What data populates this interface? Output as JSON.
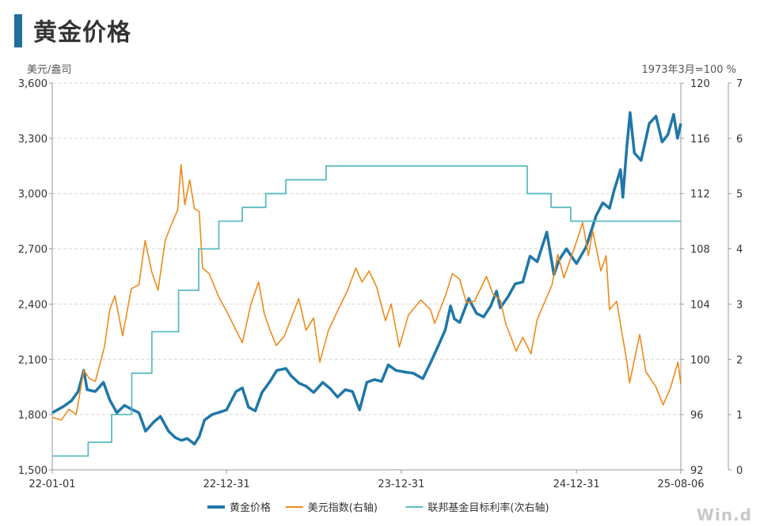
{
  "title": "黄金价格",
  "left_unit": "美元/盎司",
  "right_unit": "1973年3月=100 %",
  "watermark": "Win.d",
  "chart_data": {
    "type": "line",
    "x_ticks": [
      "22-01-01",
      "22-12-31",
      "23-12-31",
      "24-12-31",
      "25-08-06"
    ],
    "axes": {
      "left": {
        "ylim": [
          1500,
          3600
        ],
        "ticks": [
          "1,500",
          "1,800",
          "2,100",
          "2,400",
          "2,700",
          "3,000",
          "3,300",
          "3,600"
        ]
      },
      "right": {
        "ylim": [
          92,
          120
        ],
        "ticks": [
          "92",
          "96",
          "100",
          "104",
          "108",
          "112",
          "116",
          "120"
        ]
      },
      "right2": {
        "ylim": [
          0,
          7
        ],
        "ticks": [
          "0",
          "1",
          "2",
          "3",
          "4",
          "5",
          "6",
          "7"
        ]
      }
    },
    "grid": true,
    "legend_position": "bottom",
    "series": [
      {
        "name": "黄金价格",
        "axis": "left",
        "color": "#1f77a8",
        "points": [
          [
            "2022-01-01",
            1810
          ],
          [
            "2022-01-25",
            1845
          ],
          [
            "2022-02-10",
            1875
          ],
          [
            "2022-02-24",
            1925
          ],
          [
            "2022-03-08",
            2040
          ],
          [
            "2022-03-15",
            1935
          ],
          [
            "2022-04-01",
            1925
          ],
          [
            "2022-04-18",
            1975
          ],
          [
            "2022-05-01",
            1880
          ],
          [
            "2022-05-16",
            1810
          ],
          [
            "2022-06-01",
            1850
          ],
          [
            "2022-06-15",
            1830
          ],
          [
            "2022-07-01",
            1810
          ],
          [
            "2022-07-15",
            1710
          ],
          [
            "2022-08-01",
            1760
          ],
          [
            "2022-08-15",
            1790
          ],
          [
            "2022-09-01",
            1710
          ],
          [
            "2022-09-15",
            1675
          ],
          [
            "2022-09-28",
            1660
          ],
          [
            "2022-10-10",
            1670
          ],
          [
            "2022-10-25",
            1640
          ],
          [
            "2022-11-04",
            1680
          ],
          [
            "2022-11-15",
            1770
          ],
          [
            "2022-12-01",
            1800
          ],
          [
            "2022-12-31",
            1825
          ],
          [
            "2023-01-20",
            1925
          ],
          [
            "2023-02-02",
            1945
          ],
          [
            "2023-02-15",
            1840
          ],
          [
            "2023-03-01",
            1820
          ],
          [
            "2023-03-15",
            1920
          ],
          [
            "2023-04-01",
            1980
          ],
          [
            "2023-04-15",
            2040
          ],
          [
            "2023-05-04",
            2050
          ],
          [
            "2023-05-15",
            2010
          ],
          [
            "2023-06-01",
            1970
          ],
          [
            "2023-06-15",
            1955
          ],
          [
            "2023-07-01",
            1920
          ],
          [
            "2023-07-20",
            1975
          ],
          [
            "2023-08-05",
            1940
          ],
          [
            "2023-08-20",
            1895
          ],
          [
            "2023-09-05",
            1935
          ],
          [
            "2023-09-20",
            1925
          ],
          [
            "2023-10-05",
            1825
          ],
          [
            "2023-10-20",
            1975
          ],
          [
            "2023-11-05",
            1990
          ],
          [
            "2023-11-20",
            1980
          ],
          [
            "2023-12-04",
            2070
          ],
          [
            "2023-12-20",
            2040
          ],
          [
            "2024-01-10",
            2030
          ],
          [
            "2024-01-25",
            2025
          ],
          [
            "2024-02-14",
            1995
          ],
          [
            "2024-03-01",
            2080
          ],
          [
            "2024-03-15",
            2160
          ],
          [
            "2024-04-01",
            2260
          ],
          [
            "2024-04-12",
            2390
          ],
          [
            "2024-04-20",
            2320
          ],
          [
            "2024-05-01",
            2300
          ],
          [
            "2024-05-20",
            2430
          ],
          [
            "2024-06-05",
            2350
          ],
          [
            "2024-06-20",
            2330
          ],
          [
            "2024-07-05",
            2390
          ],
          [
            "2024-07-17",
            2470
          ],
          [
            "2024-07-25",
            2380
          ],
          [
            "2024-08-10",
            2440
          ],
          [
            "2024-08-25",
            2510
          ],
          [
            "2024-09-10",
            2520
          ],
          [
            "2024-09-25",
            2660
          ],
          [
            "2024-10-10",
            2630
          ],
          [
            "2024-10-30",
            2790
          ],
          [
            "2024-11-14",
            2560
          ],
          [
            "2024-11-25",
            2640
          ],
          [
            "2024-12-10",
            2700
          ],
          [
            "2024-12-31",
            2620
          ],
          [
            "2025-01-20",
            2710
          ],
          [
            "2025-02-10",
            2880
          ],
          [
            "2025-02-24",
            2950
          ],
          [
            "2025-03-10",
            2920
          ],
          [
            "2025-03-20",
            3020
          ],
          [
            "2025-04-02",
            3130
          ],
          [
            "2025-04-07",
            2980
          ],
          [
            "2025-04-15",
            3250
          ],
          [
            "2025-04-22",
            3440
          ],
          [
            "2025-05-01",
            3220
          ],
          [
            "2025-05-15",
            3180
          ],
          [
            "2025-06-01",
            3380
          ],
          [
            "2025-06-15",
            3420
          ],
          [
            "2025-06-28",
            3280
          ],
          [
            "2025-07-10",
            3320
          ],
          [
            "2025-07-22",
            3430
          ],
          [
            "2025-07-30",
            3300
          ],
          [
            "2025-08-06",
            3380
          ]
        ]
      },
      {
        "name": "美元指数(右轴)",
        "axis": "right",
        "color": "#ee8a1a",
        "points": [
          [
            "2022-01-01",
            95.8
          ],
          [
            "2022-01-20",
            95.6
          ],
          [
            "2022-02-05",
            96.4
          ],
          [
            "2022-02-20",
            96.0
          ],
          [
            "2022-03-08",
            99.2
          ],
          [
            "2022-03-20",
            98.6
          ],
          [
            "2022-04-01",
            98.4
          ],
          [
            "2022-04-20",
            100.9
          ],
          [
            "2022-05-01",
            103.6
          ],
          [
            "2022-05-12",
            104.6
          ],
          [
            "2022-05-28",
            101.7
          ],
          [
            "2022-06-15",
            105.1
          ],
          [
            "2022-07-01",
            105.4
          ],
          [
            "2022-07-14",
            108.6
          ],
          [
            "2022-07-28",
            106.3
          ],
          [
            "2022-08-10",
            105.0
          ],
          [
            "2022-08-25",
            108.6
          ],
          [
            "2022-09-05",
            109.6
          ],
          [
            "2022-09-20",
            110.8
          ],
          [
            "2022-09-27",
            114.1
          ],
          [
            "2022-10-05",
            111.2
          ],
          [
            "2022-10-15",
            113.0
          ],
          [
            "2022-10-25",
            110.9
          ],
          [
            "2022-11-04",
            110.7
          ],
          [
            "2022-11-11",
            106.6
          ],
          [
            "2022-11-25",
            106.2
          ],
          [
            "2022-12-15",
            104.5
          ],
          [
            "2022-12-31",
            103.5
          ],
          [
            "2023-01-20",
            102.1
          ],
          [
            "2023-02-02",
            101.2
          ],
          [
            "2023-02-20",
            104.0
          ],
          [
            "2023-03-08",
            105.6
          ],
          [
            "2023-03-20",
            103.3
          ],
          [
            "2023-04-01",
            102.1
          ],
          [
            "2023-04-14",
            101.0
          ],
          [
            "2023-05-01",
            101.7
          ],
          [
            "2023-05-31",
            104.4
          ],
          [
            "2023-06-15",
            102.1
          ],
          [
            "2023-07-01",
            103.0
          ],
          [
            "2023-07-14",
            99.8
          ],
          [
            "2023-08-01",
            102.1
          ],
          [
            "2023-08-20",
            103.5
          ],
          [
            "2023-09-10",
            105.0
          ],
          [
            "2023-09-27",
            106.6
          ],
          [
            "2023-10-10",
            105.6
          ],
          [
            "2023-10-25",
            106.4
          ],
          [
            "2023-11-10",
            105.2
          ],
          [
            "2023-11-28",
            102.8
          ],
          [
            "2023-12-10",
            104.0
          ],
          [
            "2023-12-27",
            100.9
          ],
          [
            "2024-01-15",
            103.2
          ],
          [
            "2024-02-10",
            104.3
          ],
          [
            "2024-03-01",
            103.6
          ],
          [
            "2024-03-10",
            102.6
          ],
          [
            "2024-04-01",
            104.6
          ],
          [
            "2024-04-16",
            106.2
          ],
          [
            "2024-05-01",
            105.8
          ],
          [
            "2024-05-15",
            104.1
          ],
          [
            "2024-06-01",
            104.2
          ],
          [
            "2024-06-26",
            106.0
          ],
          [
            "2024-07-10",
            104.7
          ],
          [
            "2024-07-25",
            104.3
          ],
          [
            "2024-08-05",
            102.6
          ],
          [
            "2024-08-27",
            100.6
          ],
          [
            "2024-09-10",
            101.6
          ],
          [
            "2024-09-27",
            100.4
          ],
          [
            "2024-10-10",
            102.9
          ],
          [
            "2024-10-25",
            104.1
          ],
          [
            "2024-11-10",
            105.4
          ],
          [
            "2024-11-22",
            107.6
          ],
          [
            "2024-12-05",
            105.9
          ],
          [
            "2024-12-31",
            108.5
          ],
          [
            "2025-01-13",
            109.9
          ],
          [
            "2025-01-25",
            107.5
          ],
          [
            "2025-02-03",
            109.3
          ],
          [
            "2025-02-20",
            106.4
          ],
          [
            "2025-03-03",
            107.5
          ],
          [
            "2025-03-10",
            103.6
          ],
          [
            "2025-03-25",
            104.2
          ],
          [
            "2025-04-05",
            101.9
          ],
          [
            "2025-04-15",
            99.9
          ],
          [
            "2025-04-21",
            98.3
          ],
          [
            "2025-05-12",
            101.8
          ],
          [
            "2025-05-25",
            99.1
          ],
          [
            "2025-06-15",
            98.0
          ],
          [
            "2025-06-30",
            96.7
          ],
          [
            "2025-07-15",
            97.9
          ],
          [
            "2025-07-31",
            99.8
          ],
          [
            "2025-08-06",
            98.2
          ]
        ]
      },
      {
        "name": "联邦基金目标利率(次右轴)",
        "axis": "right2",
        "color": "#5bbcbf",
        "step": true,
        "points": [
          [
            "2022-01-01",
            0.25
          ],
          [
            "2022-03-17",
            0.5
          ],
          [
            "2022-05-05",
            1.0
          ],
          [
            "2022-06-16",
            1.75
          ],
          [
            "2022-07-28",
            2.5
          ],
          [
            "2022-09-22",
            3.25
          ],
          [
            "2022-11-03",
            4.0
          ],
          [
            "2022-12-15",
            4.5
          ],
          [
            "2023-02-02",
            4.75
          ],
          [
            "2023-03-23",
            5.0
          ],
          [
            "2023-05-04",
            5.25
          ],
          [
            "2023-07-27",
            5.5
          ],
          [
            "2024-09-19",
            5.0
          ],
          [
            "2024-11-08",
            4.75
          ],
          [
            "2024-12-19",
            4.5
          ],
          [
            "2025-08-06",
            4.5
          ]
        ]
      }
    ]
  }
}
